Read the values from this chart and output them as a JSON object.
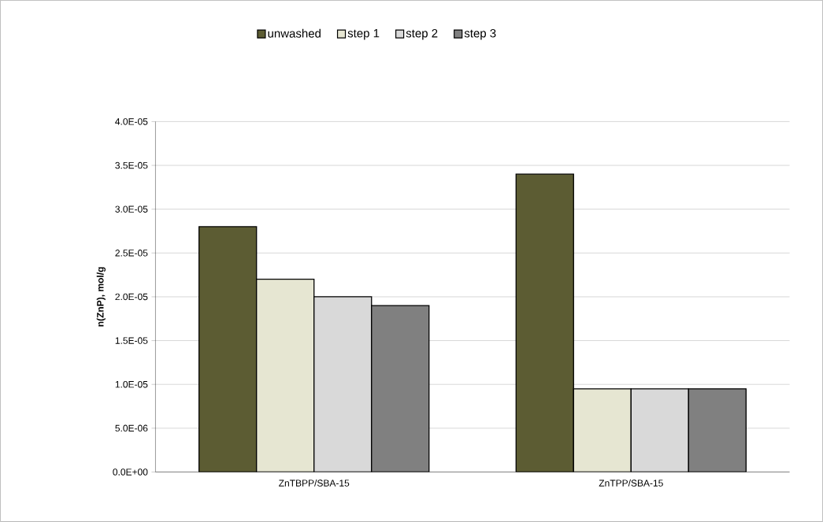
{
  "chart_data": {
    "type": "bar",
    "ylabel": "n(ZnP), mol/g",
    "categories": [
      "ZnTBPP/SBA-15",
      "ZnTPP/SBA-15"
    ],
    "series": [
      {
        "name": "unwashed",
        "color": "#5c5c33",
        "values": [
          2.8e-05,
          3.4e-05
        ]
      },
      {
        "name": "step 1",
        "color": "#e6e6d2",
        "values": [
          2.2e-05,
          9.5e-06
        ]
      },
      {
        "name": "step 2",
        "color": "#d9d9d9",
        "values": [
          2e-05,
          9.5e-06
        ]
      },
      {
        "name": "step 3",
        "color": "#808080",
        "values": [
          1.9e-05,
          9.5e-06
        ]
      }
    ],
    "ylim": [
      0,
      4e-05
    ],
    "yticks": [
      {
        "value": 0,
        "label": "0.0E+00"
      },
      {
        "value": 5e-06,
        "label": "5.0E-06"
      },
      {
        "value": 1e-05,
        "label": "1.0E-05"
      },
      {
        "value": 1.5e-05,
        "label": "1.5E-05"
      },
      {
        "value": 2e-05,
        "label": "2.0E-05"
      },
      {
        "value": 2.5e-05,
        "label": "2.5E-05"
      },
      {
        "value": 3e-05,
        "label": "3.0E-05"
      },
      {
        "value": 3.5e-05,
        "label": "3.5E-05"
      },
      {
        "value": 4e-05,
        "label": "4.0E-05"
      }
    ],
    "grid": "y",
    "legend": "top"
  }
}
